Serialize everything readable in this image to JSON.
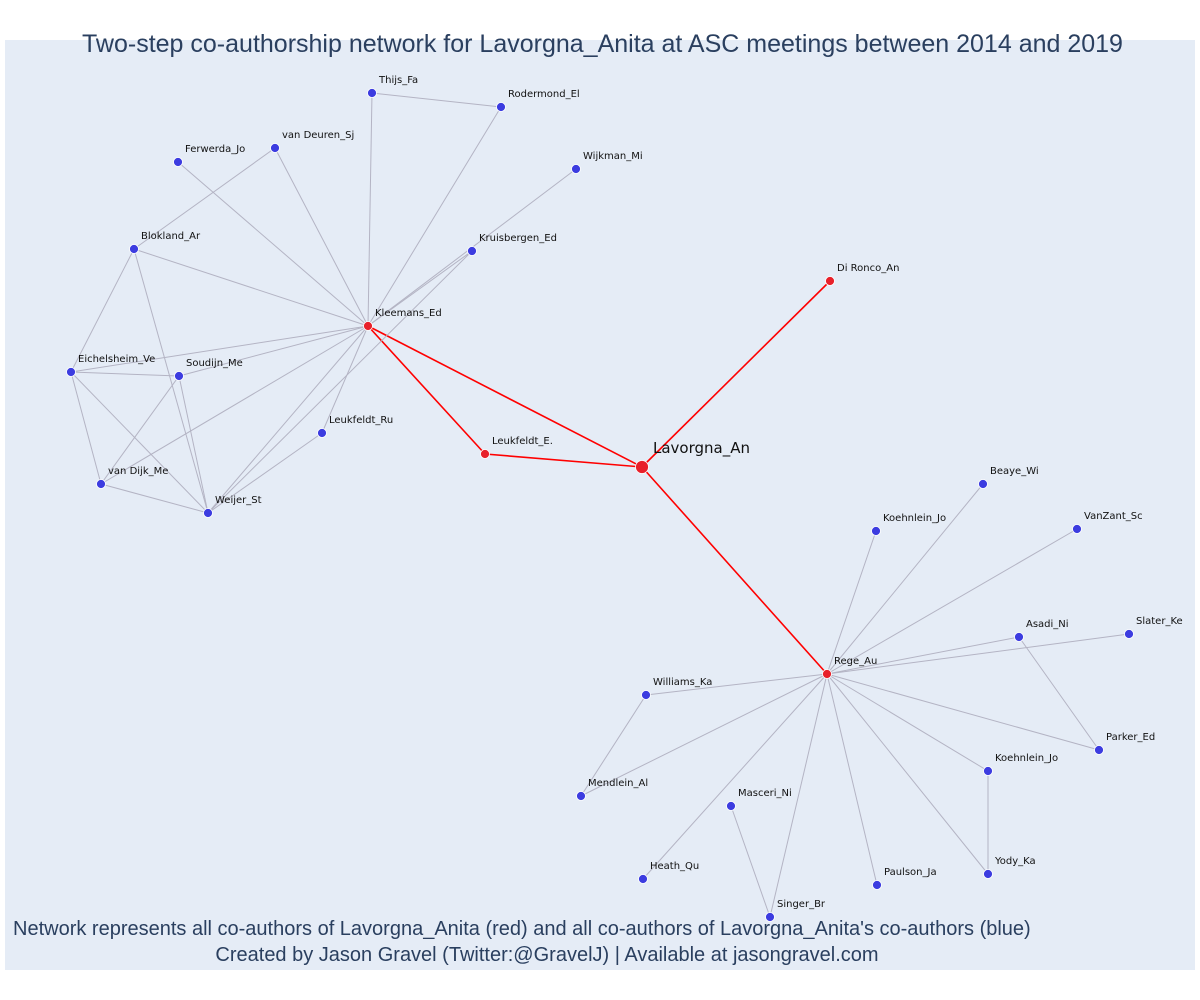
{
  "title": "Two-step co-authorship network for Lavorgna_Anita at ASC meetings between 2014 and 2019",
  "footer": {
    "line1": "Network represents all co-authors of Lavorgna_Anita (red) and all co-authors of Lavorgna_Anita's co-authors (blue)",
    "line2": "Created by Jason Gravel (Twitter:@GravelJ) | Available at jasongravel.com"
  },
  "colors": {
    "background": "#e5ecf6",
    "text": "#2a3f5f",
    "coauthor_node": "#e8202a",
    "second_step_node": "#3c3ce0",
    "focal_edge": "#ff0000",
    "other_edge": "#b4b4c4"
  },
  "nodes": [
    {
      "id": "lavorgna",
      "label": "Lavorgna_An",
      "group": "focal"
    },
    {
      "id": "kleemans",
      "label": "Kleemans_Ed",
      "group": "coauthor"
    },
    {
      "id": "leukfeldt_e",
      "label": "Leukfeldt_E.",
      "group": "coauthor"
    },
    {
      "id": "dironco",
      "label": "Di Ronco_An",
      "group": "coauthor"
    },
    {
      "id": "rege",
      "label": "Rege_Au",
      "group": "coauthor"
    },
    {
      "id": "thijs",
      "label": "Thijs_Fa",
      "group": "second"
    },
    {
      "id": "rodermond",
      "label": "Rodermond_El",
      "group": "second"
    },
    {
      "id": "vandeuren",
      "label": "van Deuren_Sj",
      "group": "second"
    },
    {
      "id": "ferwerda",
      "label": "Ferwerda_Jo",
      "group": "second"
    },
    {
      "id": "wijkman",
      "label": "Wijkman_Mi",
      "group": "second"
    },
    {
      "id": "kruisbergen",
      "label": "Kruisbergen_Ed",
      "group": "second"
    },
    {
      "id": "blokland",
      "label": "Blokland_Ar",
      "group": "second"
    },
    {
      "id": "eichelsheim",
      "label": "Eichelsheim_Ve",
      "group": "second"
    },
    {
      "id": "soudijn",
      "label": "Soudijn_Me",
      "group": "second"
    },
    {
      "id": "leukfeldt_ru",
      "label": "Leukfeldt_Ru",
      "group": "second"
    },
    {
      "id": "vandijk",
      "label": "van Dijk_Me",
      "group": "second"
    },
    {
      "id": "weijer",
      "label": "Weijer_St",
      "group": "second"
    },
    {
      "id": "beaye",
      "label": "Beaye_Wi",
      "group": "second"
    },
    {
      "id": "koehnlein1",
      "label": "Koehnlein_Jo",
      "group": "second"
    },
    {
      "id": "vanzant",
      "label": "VanZant_Sc",
      "group": "second"
    },
    {
      "id": "asadi",
      "label": "Asadi_Ni",
      "group": "second"
    },
    {
      "id": "slater",
      "label": "Slater_Ke",
      "group": "second"
    },
    {
      "id": "williams",
      "label": "Williams_Ka",
      "group": "second"
    },
    {
      "id": "parker",
      "label": "Parker_Ed",
      "group": "second"
    },
    {
      "id": "koehnlein2",
      "label": "Koehnlein_Jo",
      "group": "second"
    },
    {
      "id": "mendlein",
      "label": "Mendlein_Al",
      "group": "second"
    },
    {
      "id": "masceri",
      "label": "Masceri_Ni",
      "group": "second"
    },
    {
      "id": "heath",
      "label": "Heath_Qu",
      "group": "second"
    },
    {
      "id": "paulson",
      "label": "Paulson_Ja",
      "group": "second"
    },
    {
      "id": "yody",
      "label": "Yody_Ka",
      "group": "second"
    },
    {
      "id": "singer",
      "label": "Singer_Br",
      "group": "second"
    }
  ],
  "edges": [
    {
      "source": "lavorgna",
      "target": "kleemans",
      "type": "focal"
    },
    {
      "source": "lavorgna",
      "target": "leukfeldt_e",
      "type": "focal"
    },
    {
      "source": "lavorgna",
      "target": "dironco",
      "type": "focal"
    },
    {
      "source": "lavorgna",
      "target": "rege",
      "type": "focal"
    },
    {
      "source": "kleemans",
      "target": "leukfeldt_e",
      "type": "focal"
    },
    {
      "source": "thijs",
      "target": "rodermond",
      "type": "other"
    },
    {
      "source": "thijs",
      "target": "kleemans",
      "type": "other"
    },
    {
      "source": "rodermond",
      "target": "kleemans",
      "type": "other"
    },
    {
      "source": "vandeuren",
      "target": "kleemans",
      "type": "other"
    },
    {
      "source": "vandeuren",
      "target": "blokland",
      "type": "other"
    },
    {
      "source": "ferwerda",
      "target": "kleemans",
      "type": "other"
    },
    {
      "source": "wijkman",
      "target": "kleemans",
      "type": "other"
    },
    {
      "source": "kruisbergen",
      "target": "kleemans",
      "type": "other"
    },
    {
      "source": "kruisbergen",
      "target": "weijer",
      "type": "other"
    },
    {
      "source": "blokland",
      "target": "kleemans",
      "type": "other"
    },
    {
      "source": "blokland",
      "target": "eichelsheim",
      "type": "other"
    },
    {
      "source": "blokland",
      "target": "weijer",
      "type": "other"
    },
    {
      "source": "eichelsheim",
      "target": "kleemans",
      "type": "other"
    },
    {
      "source": "eichelsheim",
      "target": "soudijn",
      "type": "other"
    },
    {
      "source": "eichelsheim",
      "target": "vandijk",
      "type": "other"
    },
    {
      "source": "eichelsheim",
      "target": "weijer",
      "type": "other"
    },
    {
      "source": "soudijn",
      "target": "kleemans",
      "type": "other"
    },
    {
      "source": "soudijn",
      "target": "vandijk",
      "type": "other"
    },
    {
      "source": "soudijn",
      "target": "weijer",
      "type": "other"
    },
    {
      "source": "leukfeldt_ru",
      "target": "kleemans",
      "type": "other"
    },
    {
      "source": "vandijk",
      "target": "kleemans",
      "type": "other"
    },
    {
      "source": "vandijk",
      "target": "weijer",
      "type": "other"
    },
    {
      "source": "weijer",
      "target": "kleemans",
      "type": "other"
    },
    {
      "source": "weijer",
      "target": "leukfeldt_ru",
      "type": "other"
    },
    {
      "source": "koehnlein1",
      "target": "rege",
      "type": "other"
    },
    {
      "source": "beaye",
      "target": "rege",
      "type": "other"
    },
    {
      "source": "vanzant",
      "target": "rege",
      "type": "other"
    },
    {
      "source": "asadi",
      "target": "rege",
      "type": "other"
    },
    {
      "source": "asadi",
      "target": "parker",
      "type": "other"
    },
    {
      "source": "slater",
      "target": "rege",
      "type": "other"
    },
    {
      "source": "williams",
      "target": "rege",
      "type": "other"
    },
    {
      "source": "williams",
      "target": "mendlein",
      "type": "other"
    },
    {
      "source": "parker",
      "target": "rege",
      "type": "other"
    },
    {
      "source": "koehnlein2",
      "target": "rege",
      "type": "other"
    },
    {
      "source": "koehnlein2",
      "target": "yody",
      "type": "other"
    },
    {
      "source": "mendlein",
      "target": "rege",
      "type": "other"
    },
    {
      "source": "masceri",
      "target": "singer",
      "type": "other"
    },
    {
      "source": "heath",
      "target": "rege",
      "type": "other"
    },
    {
      "source": "paulson",
      "target": "rege",
      "type": "other"
    },
    {
      "source": "yody",
      "target": "rege",
      "type": "other"
    },
    {
      "source": "singer",
      "target": "rege",
      "type": "other"
    }
  ]
}
